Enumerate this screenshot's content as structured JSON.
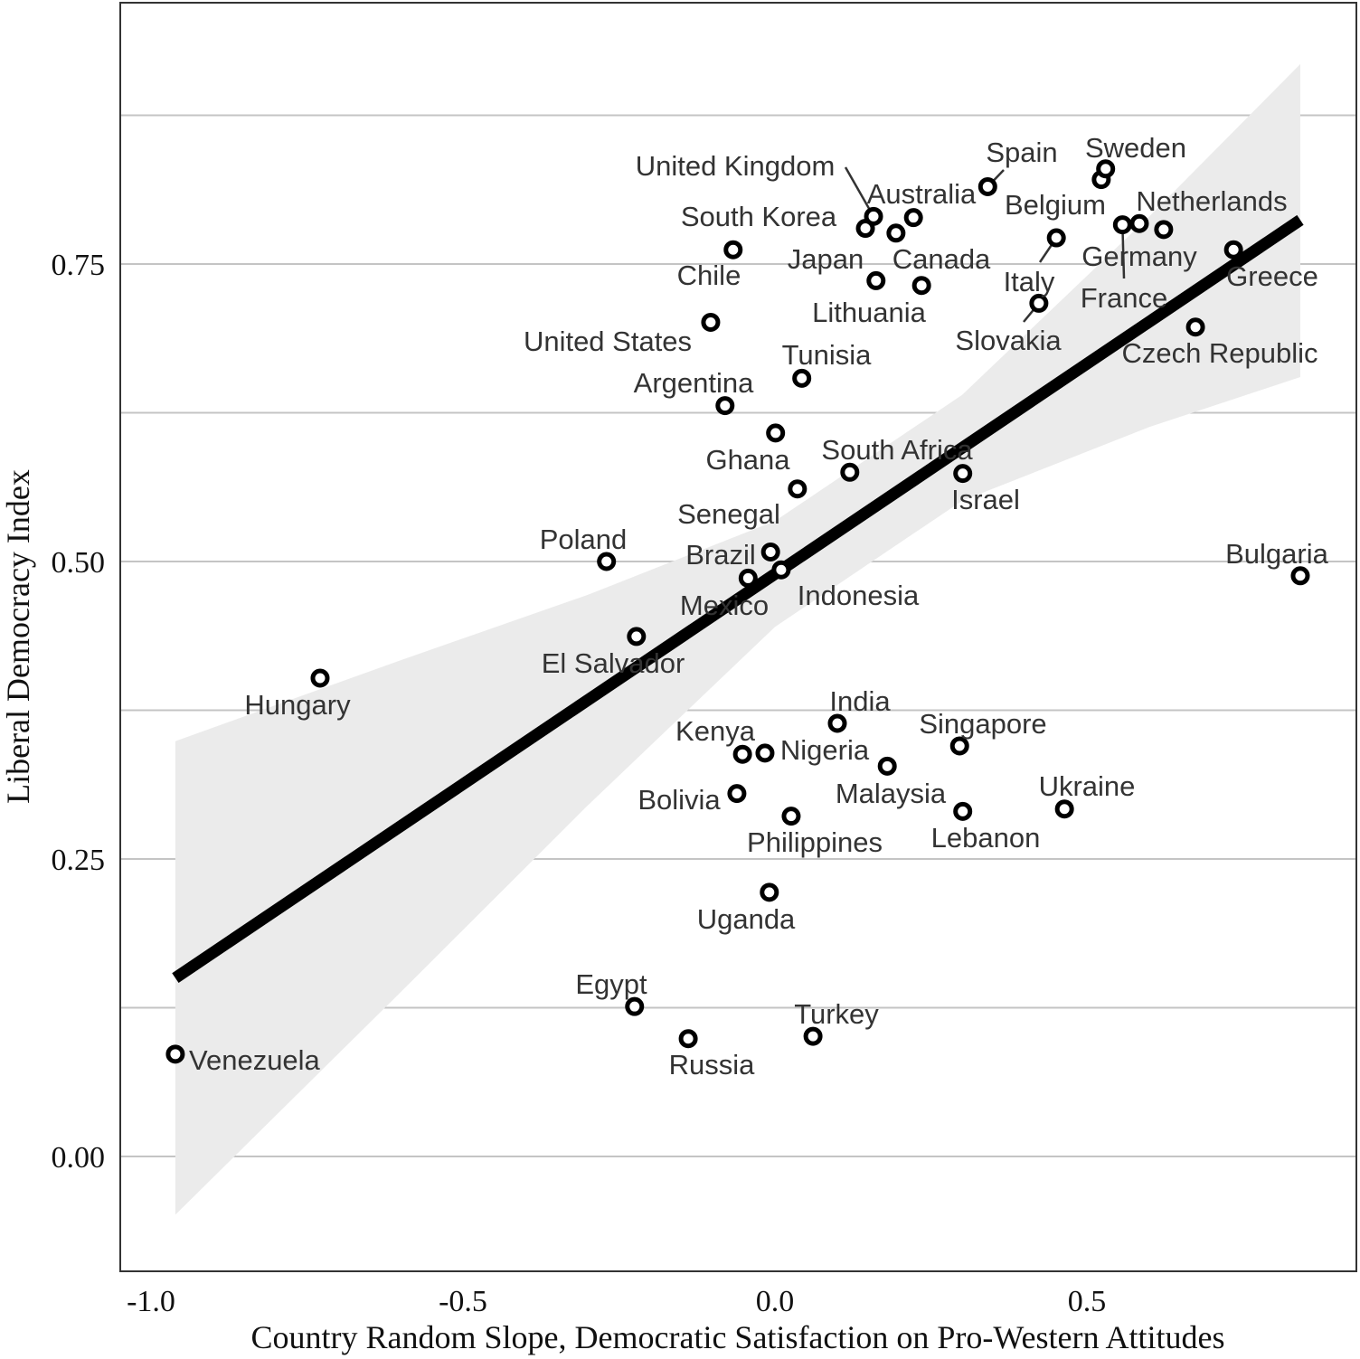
{
  "chart_data": {
    "type": "scatter",
    "title": "",
    "xlabel": "Country Random Slope, Democratic Satisfaction on Pro-Western Attitudes",
    "ylabel": "Liberal Democracy Index",
    "xlim": [
      -1.049,
      0.932
    ],
    "ylim": [
      -0.097,
      0.97
    ],
    "x_ticks": [
      -1.0,
      -0.5,
      0.0,
      0.5
    ],
    "x_tick_labels": [
      "-1.0",
      "-0.5",
      "0.0",
      "0.5"
    ],
    "y_ticks": [
      0.0,
      0.25,
      0.5,
      0.75
    ],
    "y_tick_labels": [
      "0.00",
      "0.25",
      "0.50",
      "0.75"
    ],
    "y_minor_grid": [
      0.125,
      0.375,
      0.625,
      0.875
    ],
    "grid": "horizontal",
    "colors": {
      "points": "#000000",
      "line": "#000000",
      "ribbon": "#ebebeb",
      "grid": "#c4c4c4",
      "labels": "#333333"
    },
    "points": [
      {
        "label": "Venezuela",
        "x": -0.961,
        "y": 0.086
      },
      {
        "label": "Hungary",
        "x": -0.729,
        "y": 0.402
      },
      {
        "label": "Poland",
        "x": -0.27,
        "y": 0.5
      },
      {
        "label": "El Salvador",
        "x": -0.222,
        "y": 0.437
      },
      {
        "label": "Egypt",
        "x": -0.225,
        "y": 0.126
      },
      {
        "label": "Russia",
        "x": -0.139,
        "y": 0.099
      },
      {
        "label": "Turkey",
        "x": 0.061,
        "y": 0.101
      },
      {
        "label": "Uganda",
        "x": -0.009,
        "y": 0.222
      },
      {
        "label": "Philippines",
        "x": 0.026,
        "y": 0.286
      },
      {
        "label": "Bolivia",
        "x": -0.061,
        "y": 0.305
      },
      {
        "label": "Kenya",
        "x": -0.052,
        "y": 0.338
      },
      {
        "label": "Nigeria",
        "x": -0.016,
        "y": 0.339
      },
      {
        "label": "India",
        "x": 0.1,
        "y": 0.364
      },
      {
        "label": "Malaysia",
        "x": 0.18,
        "y": 0.328
      },
      {
        "label": "Singapore",
        "x": 0.296,
        "y": 0.345
      },
      {
        "label": "Lebanon",
        "x": 0.301,
        "y": 0.29
      },
      {
        "label": "Ukraine",
        "x": 0.464,
        "y": 0.292
      },
      {
        "label": "Mexico",
        "x": -0.043,
        "y": 0.486
      },
      {
        "label": "Brazil",
        "x": -0.007,
        "y": 0.508
      },
      {
        "label": "Indonesia",
        "x": 0.01,
        "y": 0.493
      },
      {
        "label": "Senegal",
        "x": 0.036,
        "y": 0.561
      },
      {
        "label": "Ghana",
        "x": 0.001,
        "y": 0.608
      },
      {
        "label": "South Africa",
        "x": 0.12,
        "y": 0.575
      },
      {
        "label": "Israel",
        "x": 0.301,
        "y": 0.574
      },
      {
        "label": "Argentina",
        "x": -0.08,
        "y": 0.631
      },
      {
        "label": "Tunisia",
        "x": 0.043,
        "y": 0.654
      },
      {
        "label": "United States",
        "x": -0.103,
        "y": 0.701
      },
      {
        "label": "Chile",
        "x": -0.067,
        "y": 0.762
      },
      {
        "label": "Lithuania",
        "x": 0.162,
        "y": 0.736
      },
      {
        "label": "Canada",
        "x": 0.235,
        "y": 0.732
      },
      {
        "label": "Japan",
        "x": 0.194,
        "y": 0.776
      },
      {
        "label": "South Korea",
        "x": 0.145,
        "y": 0.78
      },
      {
        "label": "United Kingdom",
        "x": 0.158,
        "y": 0.79
      },
      {
        "label": "Australia",
        "x": 0.222,
        "y": 0.789
      },
      {
        "label": "Spain",
        "x": 0.341,
        "y": 0.815
      },
      {
        "label": "Belgium",
        "x": 0.523,
        "y": 0.821
      },
      {
        "label": "Sweden",
        "x": 0.53,
        "y": 0.83
      },
      {
        "label": "Italy",
        "x": 0.451,
        "y": 0.772
      },
      {
        "label": "Slovakia",
        "x": 0.423,
        "y": 0.717
      },
      {
        "label": "France",
        "x": 0.557,
        "y": 0.783
      },
      {
        "label": "Germany",
        "x": 0.584,
        "y": 0.784
      },
      {
        "label": "Netherlands",
        "x": 0.623,
        "y": 0.779
      },
      {
        "label": "Greece",
        "x": 0.735,
        "y": 0.762
      },
      {
        "label": "Czech Republic",
        "x": 0.674,
        "y": 0.697
      },
      {
        "label": "Bulgaria",
        "x": 0.842,
        "y": 0.488
      }
    ],
    "fit_line": {
      "x": [
        -0.961,
        0.842
      ],
      "y": [
        0.15,
        0.787
      ]
    },
    "ribbon": {
      "x": [
        -0.961,
        -0.6,
        -0.3,
        0.0,
        0.3,
        0.6,
        0.842
      ],
      "lower": [
        -0.049,
        0.138,
        0.295,
        0.445,
        0.551,
        0.613,
        0.655
      ],
      "upper": [
        0.349,
        0.417,
        0.472,
        0.534,
        0.64,
        0.79,
        0.918
      ]
    }
  }
}
